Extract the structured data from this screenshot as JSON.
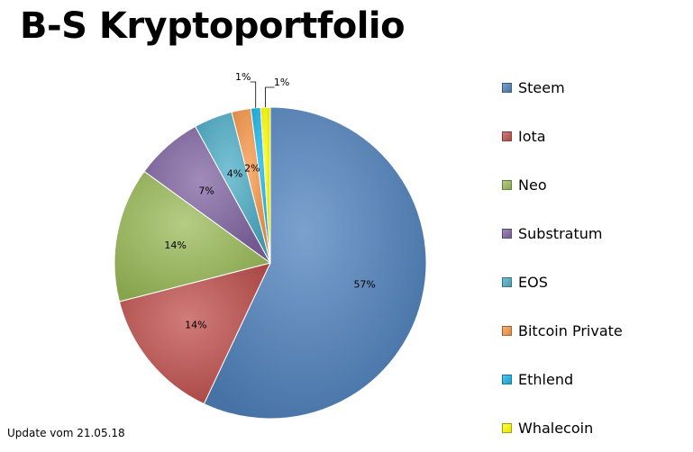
{
  "title": "B-S Kryptoportfolio",
  "footer": "Update vom 21.05.18",
  "chart_data": {
    "type": "pie",
    "title": "B-S Kryptoportfolio",
    "legend_position": "right",
    "slices": [
      {
        "name": "Steem",
        "value": 57,
        "label": "57%",
        "color": "#4f81bd"
      },
      {
        "name": "Iota",
        "value": 14,
        "label": "14%",
        "color": "#c0504d"
      },
      {
        "name": "Neo",
        "value": 14,
        "label": "14%",
        "color": "#9bbb59"
      },
      {
        "name": "Substratum",
        "value": 7,
        "label": "7%",
        "color": "#8064a2"
      },
      {
        "name": "EOS",
        "value": 4,
        "label": "4%",
        "color": "#4bacc6"
      },
      {
        "name": "Bitcoin Private",
        "value": 2,
        "label": "2%",
        "color": "#f79646"
      },
      {
        "name": "Ethlend",
        "value": 1,
        "label": "1%",
        "color": "#17b4e8"
      },
      {
        "name": "Whalecoin",
        "value": 1,
        "label": "1%",
        "color": "#ffff00"
      }
    ]
  }
}
